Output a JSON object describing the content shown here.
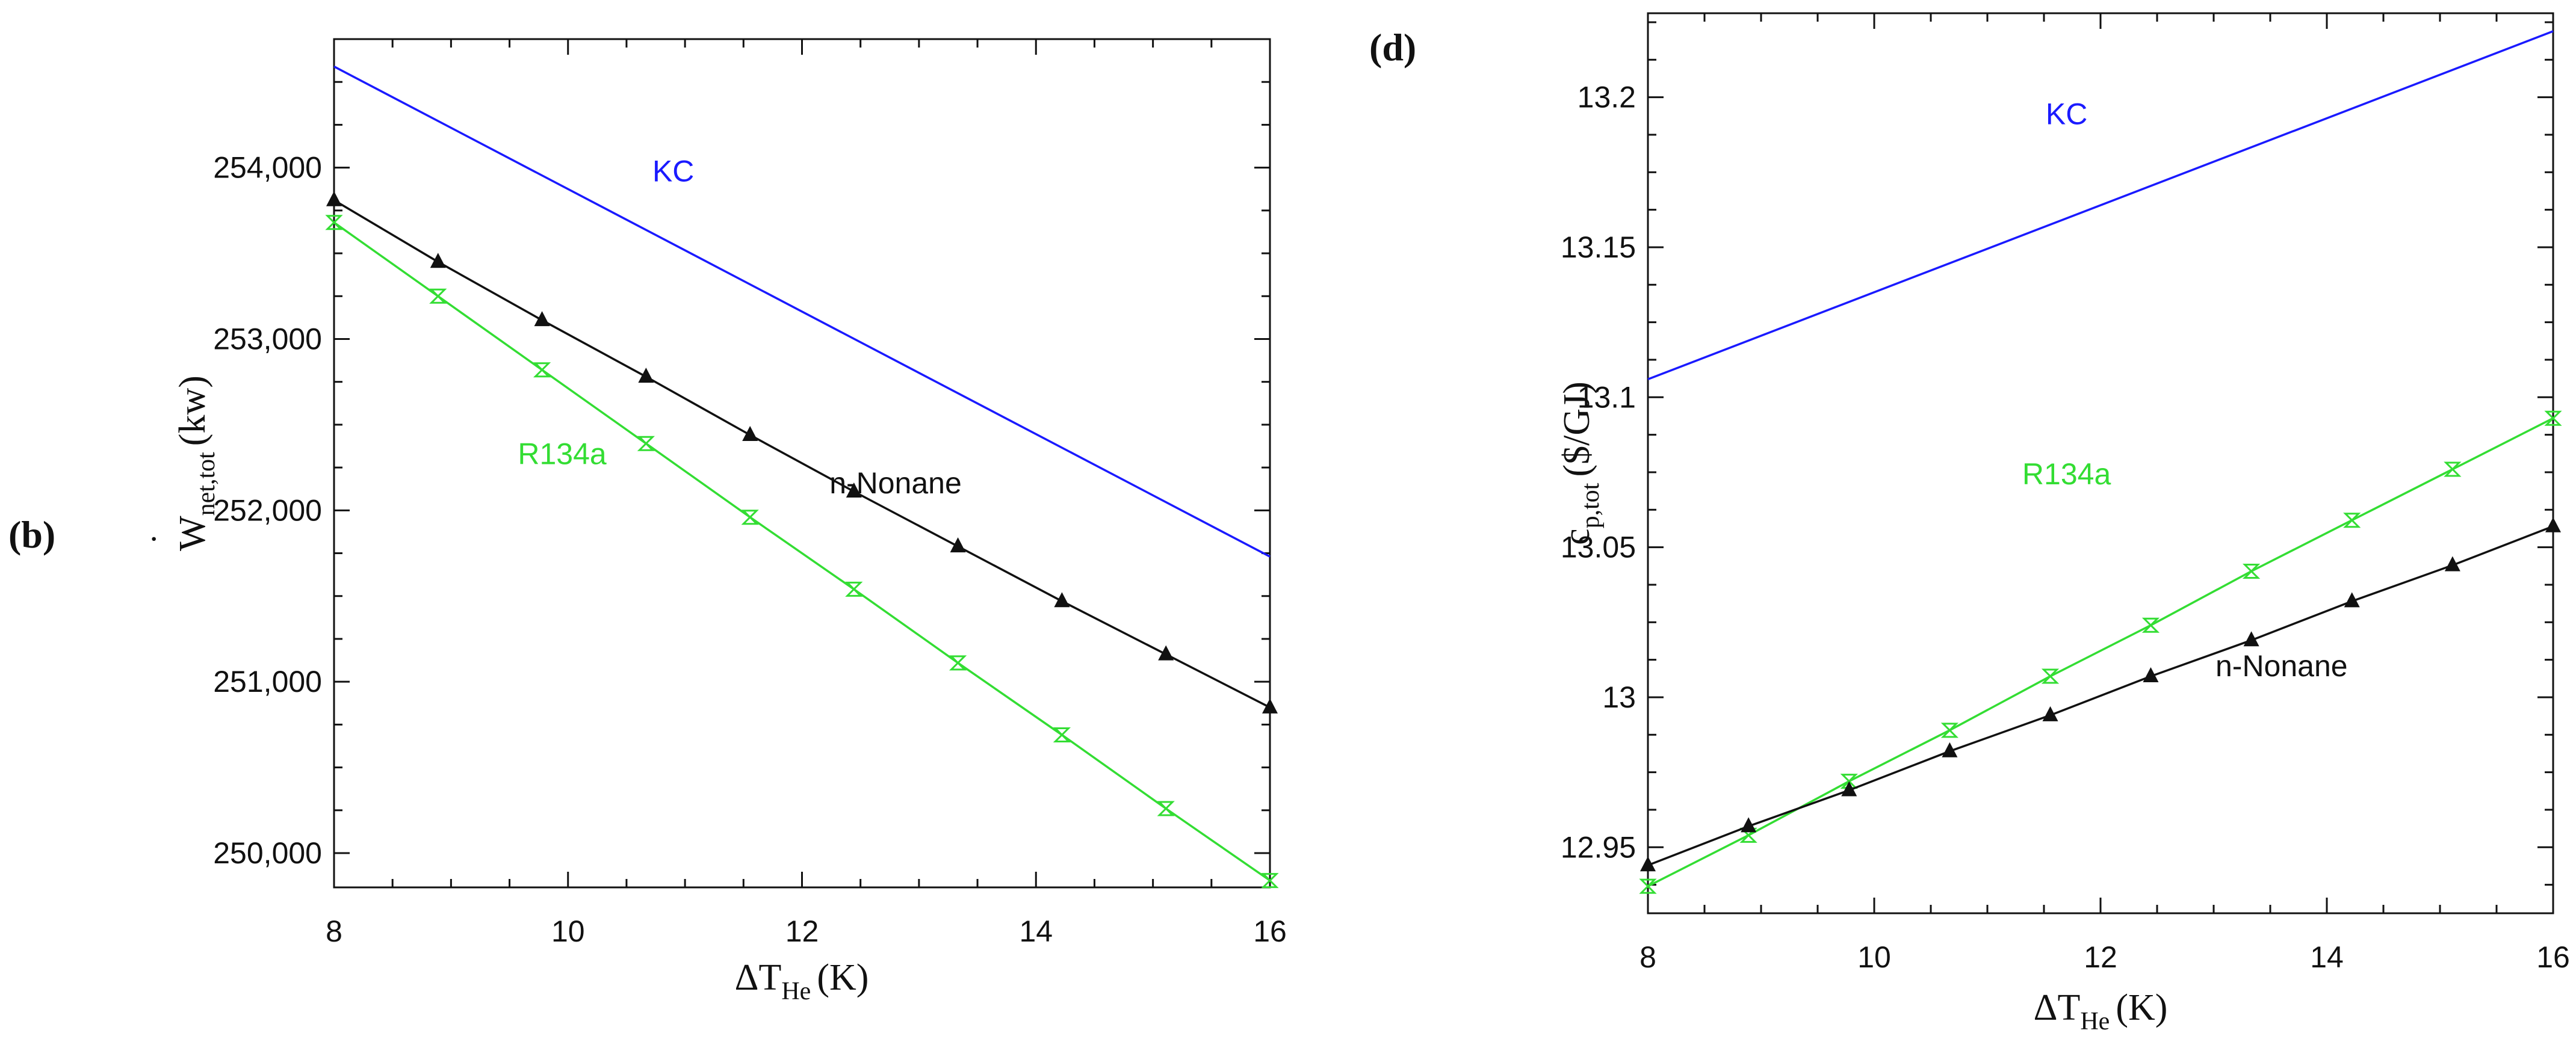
{
  "chart_data": [
    {
      "type": "line",
      "panel": "(b)",
      "xlabel": "ΔT",
      "xlabel_sub": "He",
      "xlabel_unit": "(K)",
      "ylabel_dot": "˙",
      "ylabel_main": "W",
      "ylabel_sub": "net,tot",
      "ylabel_unit": "(kw)",
      "xlim": [
        8,
        16
      ],
      "ylim": [
        249800,
        254750
      ],
      "xticks": [
        8,
        10,
        12,
        14,
        16
      ],
      "xtick_labels": [
        "8",
        "10",
        "12",
        "14",
        "16"
      ],
      "yticks": [
        250000,
        251000,
        252000,
        253000,
        254000
      ],
      "ytick_labels": [
        "250,000",
        "251,000",
        "252,000",
        "253,000",
        "254,000"
      ],
      "series": [
        {
          "name": "KC",
          "label": "KC",
          "color": "#1a1aff",
          "marker": "none",
          "label_pos": [
            10.9,
            253920
          ],
          "x": [
            8,
            16
          ],
          "y": [
            254590,
            251730
          ]
        },
        {
          "name": "n-Nonane",
          "label": "n-Nonane",
          "color": "#111111",
          "marker": "triangle",
          "label_pos": [
            12.8,
            252100
          ],
          "x": [
            8,
            8.889,
            9.778,
            10.667,
            11.556,
            12.444,
            13.333,
            14.222,
            15.111,
            16
          ],
          "y": [
            253810,
            253450,
            253110,
            252780,
            252440,
            252110,
            251790,
            251470,
            251160,
            250850
          ]
        },
        {
          "name": "R134a",
          "label": "R134a",
          "color": "#33dd33",
          "marker": "hourglass",
          "label_pos": [
            9.95,
            252270
          ],
          "x": [
            8,
            8.889,
            9.778,
            10.667,
            11.556,
            12.444,
            13.333,
            14.222,
            15.111,
            16
          ],
          "y": [
            253680,
            253250,
            252820,
            252390,
            251960,
            251540,
            251110,
            250690,
            250260,
            249840
          ]
        }
      ]
    },
    {
      "type": "line",
      "panel": "(d)",
      "xlabel": "ΔT",
      "xlabel_sub": "He",
      "xlabel_unit": "(K)",
      "ylabel_main": "c",
      "ylabel_sub": "p,tot",
      "ylabel_unit": "($/GJ)",
      "xlim": [
        8,
        16
      ],
      "ylim": [
        12.928,
        13.228
      ],
      "xticks": [
        8,
        10,
        12,
        14,
        16
      ],
      "xtick_labels": [
        "8",
        "10",
        "12",
        "14",
        "16"
      ],
      "yticks": [
        12.95,
        13,
        13.05,
        13.1,
        13.15,
        13.2
      ],
      "ytick_labels": [
        "12.95",
        "13",
        "13.05",
        "13.1",
        "13.15",
        "13.2"
      ],
      "series": [
        {
          "name": "KC",
          "label": "KC",
          "color": "#1a1aff",
          "marker": "none",
          "label_pos": [
            11.7,
            13.191
          ],
          "x": [
            8,
            16
          ],
          "y": [
            13.106,
            13.222
          ]
        },
        {
          "name": "R134a",
          "label": "R134a",
          "color": "#33dd33",
          "marker": "hourglass",
          "label_pos": [
            11.7,
            13.071
          ],
          "x": [
            8,
            8.889,
            9.778,
            10.667,
            11.556,
            12.444,
            13.333,
            14.222,
            15.111,
            16
          ],
          "y": [
            12.937,
            12.954,
            12.972,
            12.989,
            13.007,
            13.024,
            13.042,
            13.059,
            13.076,
            13.093
          ]
        },
        {
          "name": "n-Nonane",
          "label": "n-Nonane",
          "color": "#111111",
          "marker": "triangle",
          "label_pos": [
            13.6,
            13.007
          ],
          "x": [
            8,
            8.889,
            9.778,
            10.667,
            11.556,
            12.444,
            13.333,
            14.222,
            15.111,
            16
          ],
          "y": [
            12.944,
            12.957,
            12.969,
            12.982,
            12.994,
            13.007,
            13.019,
            13.032,
            13.044,
            13.057
          ]
        }
      ]
    }
  ]
}
